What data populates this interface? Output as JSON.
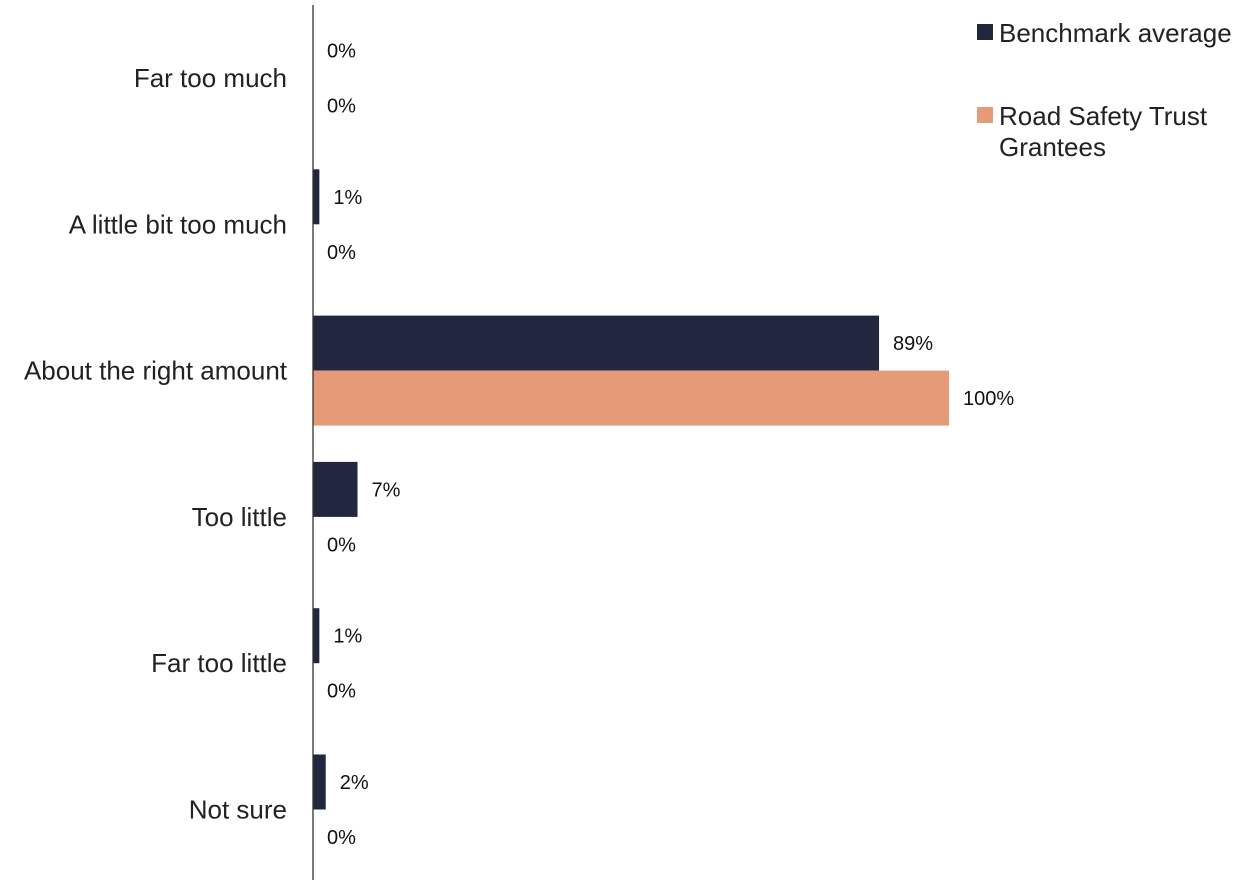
{
  "chart_data": {
    "type": "bar",
    "orientation": "horizontal",
    "categories": [
      "Far too much",
      "A little bit too much",
      "About the right amount",
      "Too little",
      "Far too little",
      "Not sure"
    ],
    "series": [
      {
        "name": "Benchmark average",
        "color": "#22263f",
        "values": [
          0,
          1,
          89,
          7,
          1,
          2
        ],
        "labels": [
          "0%",
          "1%",
          "89%",
          "7%",
          "1%",
          "2%"
        ]
      },
      {
        "name": "Road Safety Trust Grantees",
        "color": "#e59b78",
        "values": [
          0,
          0,
          100,
          0,
          0,
          0
        ],
        "labels": [
          "0%",
          "0%",
          "100%",
          "0%",
          "0%",
          "0%"
        ]
      }
    ],
    "value_unit": "%",
    "xlim": [
      0,
      100
    ],
    "title": "",
    "xlabel": "",
    "ylabel": "",
    "grid": false,
    "legend_position": "top-right"
  }
}
